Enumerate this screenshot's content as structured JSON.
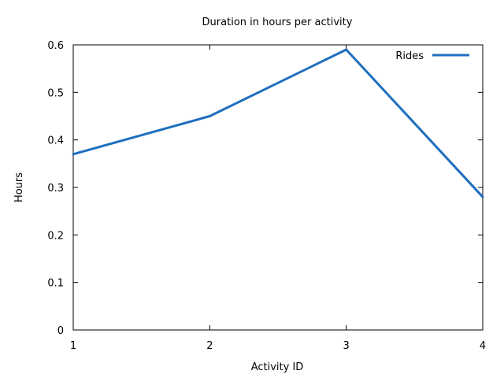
{
  "chart_data": {
    "type": "line",
    "title": "Duration in hours per activity",
    "xlabel": "Activity ID",
    "ylabel": "Hours",
    "xlim": [
      1,
      4
    ],
    "ylim": [
      0,
      0.6
    ],
    "x_ticks": [
      "1",
      "2",
      "3",
      "4"
    ],
    "y_ticks": [
      "0",
      "0.1",
      "0.2",
      "0.3",
      "0.4",
      "0.5",
      "0.6"
    ],
    "legend_position": "top-right",
    "grid": false,
    "series": [
      {
        "name": "Rides",
        "color": "#1f6fbf",
        "x": [
          1,
          2,
          3,
          4
        ],
        "y": [
          0.37,
          0.45,
          0.59,
          0.28
        ]
      }
    ]
  }
}
